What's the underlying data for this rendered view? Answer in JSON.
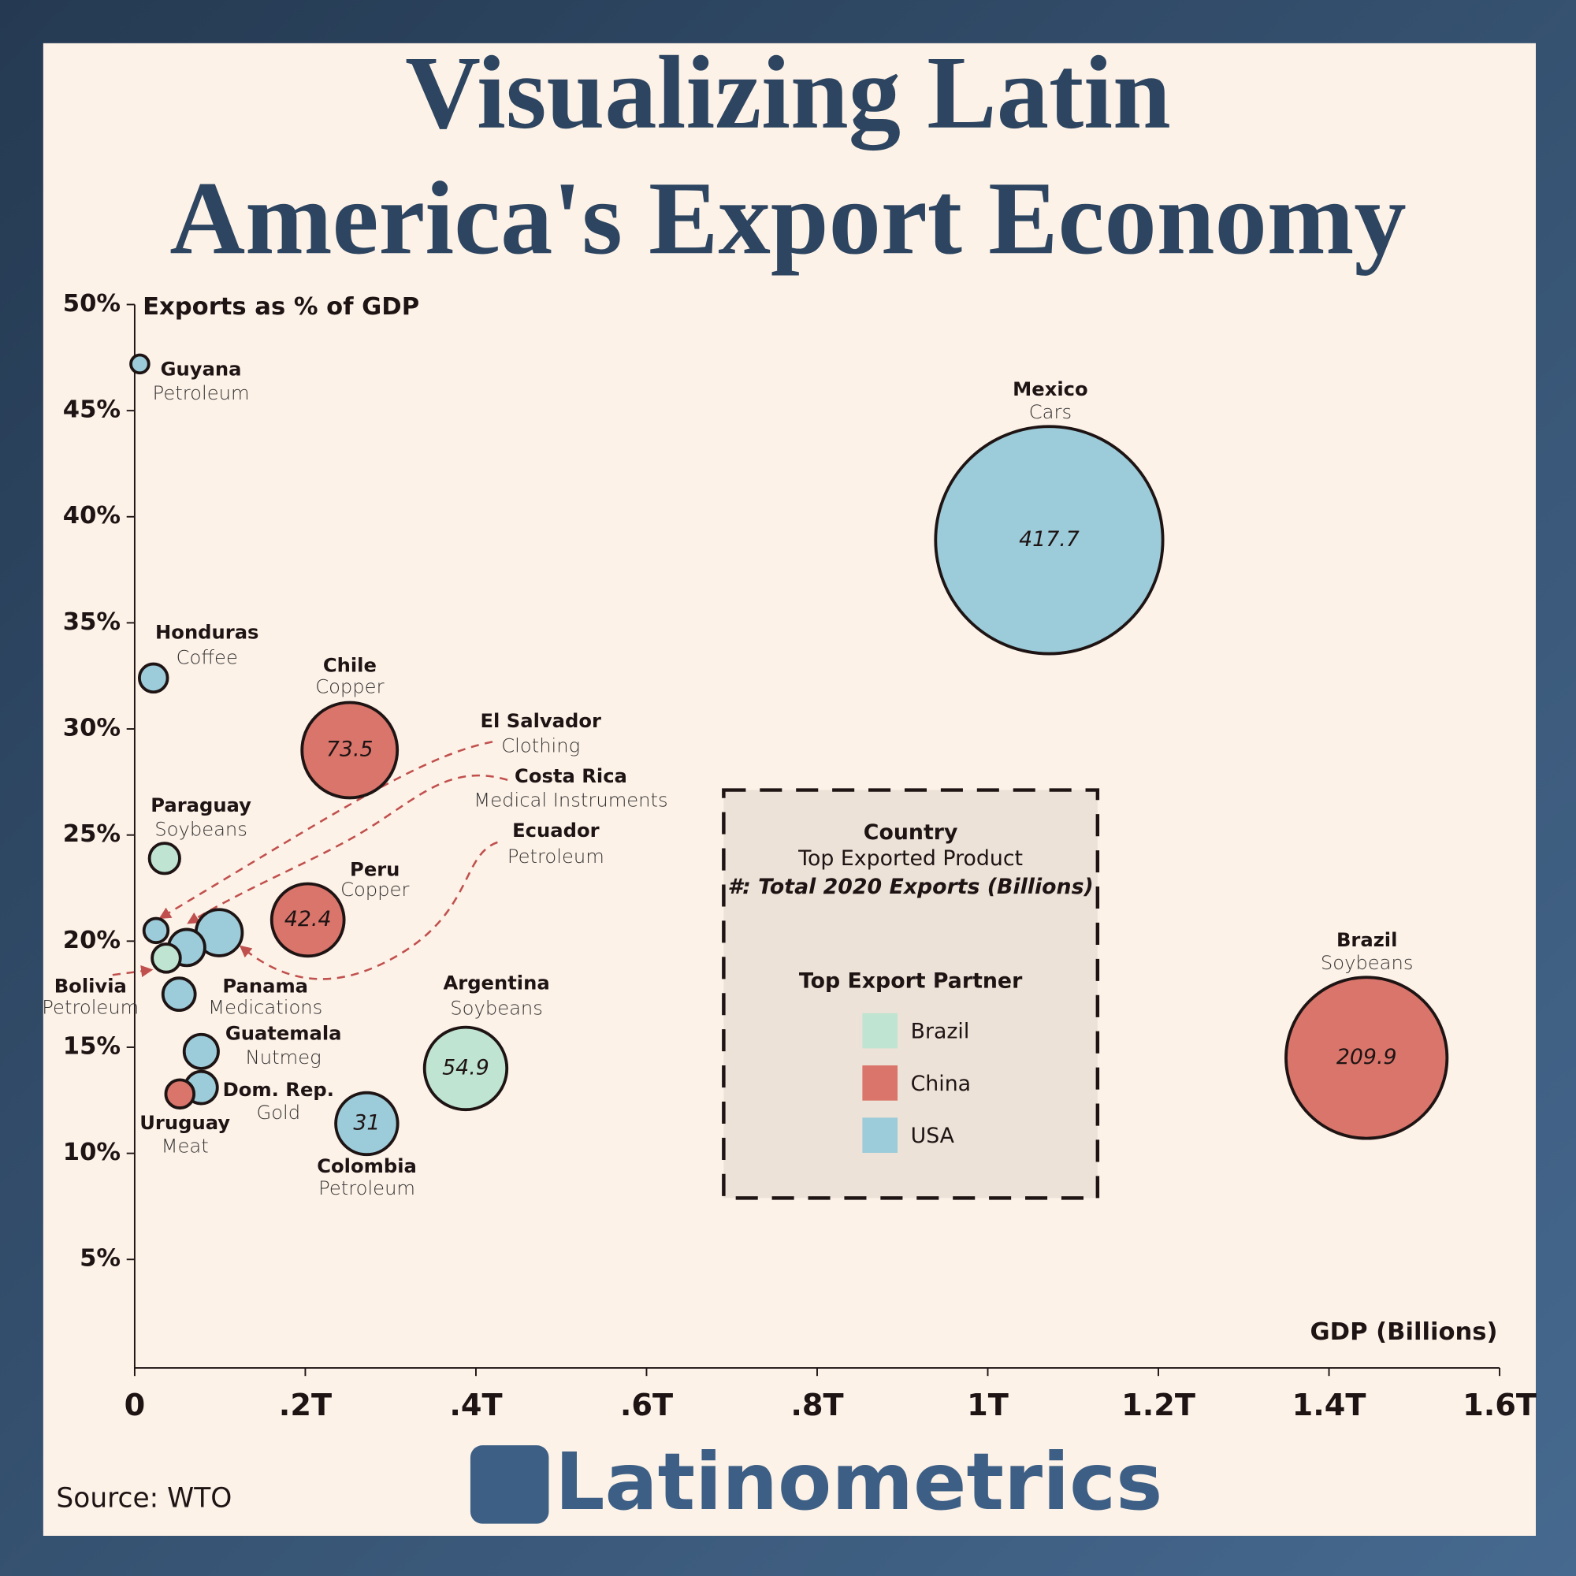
{
  "chart_data": {
    "type": "bubble",
    "title_lines": [
      "Visualizing Latin",
      "America's Export Economy"
    ],
    "y_label": "Exports as % of GDP",
    "x_label": "GDP (Billions)",
    "xlim": [
      0,
      1.6
    ],
    "ylim": [
      0,
      50
    ],
    "xticks": [
      0,
      {
        "value": 0.2,
        "label": ".2T"
      },
      {
        "value": 0.4,
        "label": ".4T"
      },
      {
        "value": 0.6,
        "label": ".6T"
      },
      {
        "value": 0.8,
        "label": ".8T"
      },
      {
        "value": 1,
        "label": "1T"
      },
      {
        "value": 1.2,
        "label": "1.2T"
      },
      {
        "value": 1.4,
        "label": "1.4T"
      },
      {
        "value": 1.6,
        "label": "1.6T"
      }
    ],
    "yticks": [
      {
        "value": 5,
        "label": "5%"
      },
      {
        "value": 10,
        "label": "10%"
      },
      {
        "value": 15,
        "label": "15%"
      },
      {
        "value": 20,
        "label": "20%"
      },
      {
        "value": 25,
        "label": "25%"
      },
      {
        "value": 30,
        "label": "30%"
      },
      {
        "value": 35,
        "label": "35%"
      },
      {
        "value": 40,
        "label": "40%"
      },
      {
        "value": 45,
        "label": "45%"
      },
      {
        "value": 50,
        "label": "50%"
      }
    ],
    "legend": {
      "country": "Country",
      "product": "Top Exported Product",
      "size": "#: Total 2020 Exports (Billions)",
      "title": "Top Export Partner"
    },
    "series": [
      {
        "name": "Brazil",
        "color": "#bfe4d2",
        "countries": [
          "Paraguay",
          "Bolivia",
          "Argentina"
        ],
        "products": [
          "Soybeans",
          "Petroleum",
          "Soybeans"
        ],
        "x": [
          0.035,
          0.037,
          0.388
        ],
        "y": [
          23.9,
          19.2,
          14.0
        ],
        "sizes": [
          7.4,
          6.4,
          54.9
        ],
        "value_labels": [
          null,
          null,
          "54.9"
        ]
      },
      {
        "name": "China",
        "color": "#d9756b",
        "countries": [
          "Chile",
          "Peru",
          "Uruguay",
          "Brazil"
        ],
        "products": [
          "Copper",
          "Copper",
          "Meat",
          "Soybeans"
        ],
        "x": [
          0.252,
          0.203,
          0.053,
          1.444
        ],
        "y": [
          29.0,
          21.0,
          12.8,
          14.5
        ],
        "sizes": [
          73.5,
          42.4,
          6.4,
          209.9
        ],
        "value_labels": [
          "73.5",
          "42.4",
          null,
          "209.9"
        ]
      },
      {
        "name": "USA",
        "color": "#9ccbd9",
        "countries": [
          "Guyana",
          "Honduras",
          "El Salvador",
          "Costa Rica",
          "Ecuador",
          "Panama",
          "Guatemala",
          "Dom. Rep.",
          "Colombia",
          "Mexico"
        ],
        "products": [
          "Petroleum",
          "Coffee",
          "Clothing",
          "Medical Instruments",
          "Petroleum",
          "Medications",
          "Nutmeg",
          "Gold",
          "Petroleum",
          "Cars"
        ],
        "x": [
          0.006,
          0.022,
          0.025,
          0.061,
          0.099,
          0.052,
          0.078,
          0.078,
          0.272,
          1.072
        ],
        "y": [
          47.2,
          32.4,
          20.5,
          19.7,
          20.4,
          17.5,
          14.8,
          13.1,
          11.4,
          38.9
        ],
        "sizes": [
          2.6,
          6.4,
          4.7,
          10.6,
          17.3,
          8.4,
          9.4,
          8.4,
          31,
          417.7
        ],
        "value_labels": [
          null,
          null,
          null,
          null,
          null,
          null,
          null,
          null,
          "31",
          "417.7"
        ]
      }
    ]
  },
  "source": "Source: WTO",
  "logo": "Latinometrics"
}
